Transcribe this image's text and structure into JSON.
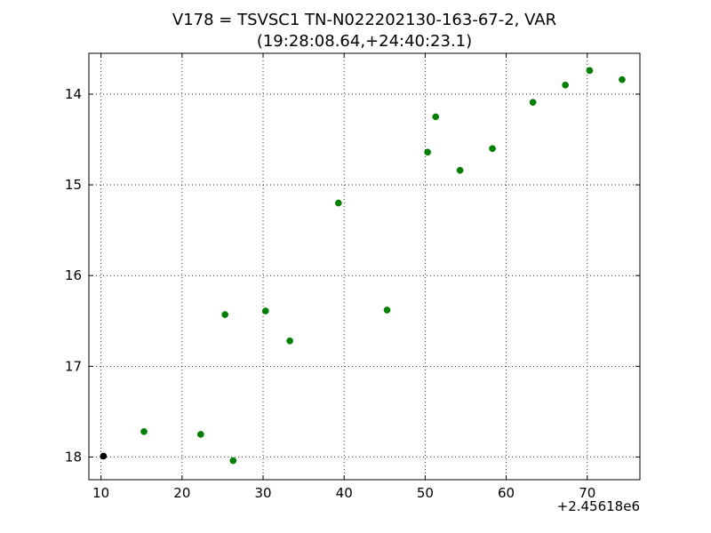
{
  "chart_data": {
    "type": "scatter",
    "title_lines": [
      "V178 = TSVSC1 TN-N022202130-163-67-2, VAR",
      "(19:28:08.64,+24:40:23.1)"
    ],
    "xlabel": "",
    "ylabel": "",
    "x_offset_label": "+2.45618e6",
    "xlim": [
      8.5,
      76.5
    ],
    "ylim": [
      18.25,
      13.55
    ],
    "y_inverted": true,
    "grid": true,
    "grid_style": "dotted",
    "x_ticks": [
      10,
      20,
      30,
      40,
      50,
      60,
      70
    ],
    "x_tick_labels": [
      "10",
      "20",
      "30",
      "40",
      "50",
      "60",
      "70"
    ],
    "y_ticks": [
      14,
      15,
      16,
      17,
      18
    ],
    "y_tick_labels": [
      "14",
      "15",
      "16",
      "17",
      "18"
    ],
    "series": [
      {
        "color": "#007f00",
        "points": [
          {
            "x": 15.3,
            "y": 17.72
          },
          {
            "x": 22.3,
            "y": 17.75
          },
          {
            "x": 25.3,
            "y": 16.43
          },
          {
            "x": 26.3,
            "y": 18.04
          },
          {
            "x": 30.3,
            "y": 16.39
          },
          {
            "x": 33.3,
            "y": 16.72
          },
          {
            "x": 39.3,
            "y": 15.2
          },
          {
            "x": 45.3,
            "y": 16.38
          },
          {
            "x": 50.3,
            "y": 14.64
          },
          {
            "x": 51.3,
            "y": 14.25
          },
          {
            "x": 54.3,
            "y": 14.84
          },
          {
            "x": 58.3,
            "y": 14.6
          },
          {
            "x": 63.3,
            "y": 14.09
          },
          {
            "x": 67.3,
            "y": 13.9
          },
          {
            "x": 70.3,
            "y": 13.74
          },
          {
            "x": 74.3,
            "y": 13.84
          }
        ]
      },
      {
        "color": "#000000",
        "points": [
          {
            "x": 10.3,
            "y": 17.99
          }
        ]
      }
    ]
  }
}
